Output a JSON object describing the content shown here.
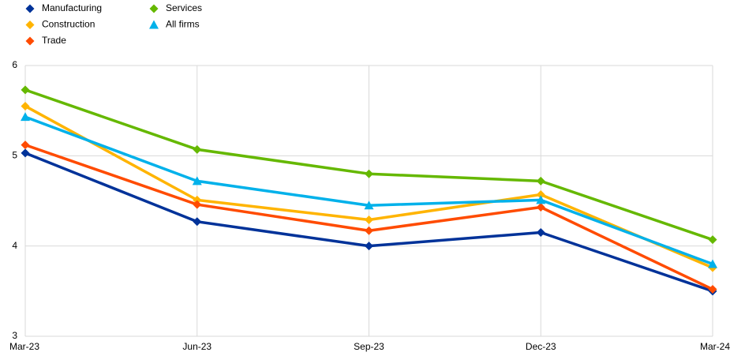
{
  "chart_data": {
    "type": "line",
    "categories": [
      "Mar-23",
      "Jun-23",
      "Sep-23",
      "Dec-23",
      "Mar-24"
    ],
    "series": [
      {
        "name": "Manufacturing",
        "color": "#003299",
        "marker": "diamond",
        "values": [
          5.03,
          4.27,
          4.0,
          4.15,
          3.5
        ]
      },
      {
        "name": "Construction",
        "color": "#ffb400",
        "marker": "diamond",
        "values": [
          5.55,
          4.51,
          4.29,
          4.57,
          3.76
        ]
      },
      {
        "name": "Trade",
        "color": "#ff4b00",
        "marker": "diamond",
        "values": [
          5.12,
          4.46,
          4.17,
          4.43,
          3.52
        ]
      },
      {
        "name": "Services",
        "color": "#65b800",
        "marker": "diamond",
        "values": [
          5.73,
          5.07,
          4.8,
          4.72,
          4.07
        ]
      },
      {
        "name": "All firms",
        "color": "#00b1ea",
        "marker": "triangle",
        "values": [
          5.43,
          4.72,
          4.45,
          4.51,
          3.8
        ]
      }
    ],
    "ylim": [
      3,
      6
    ],
    "yticks": [
      3,
      4,
      5,
      6
    ],
    "grid": true
  }
}
